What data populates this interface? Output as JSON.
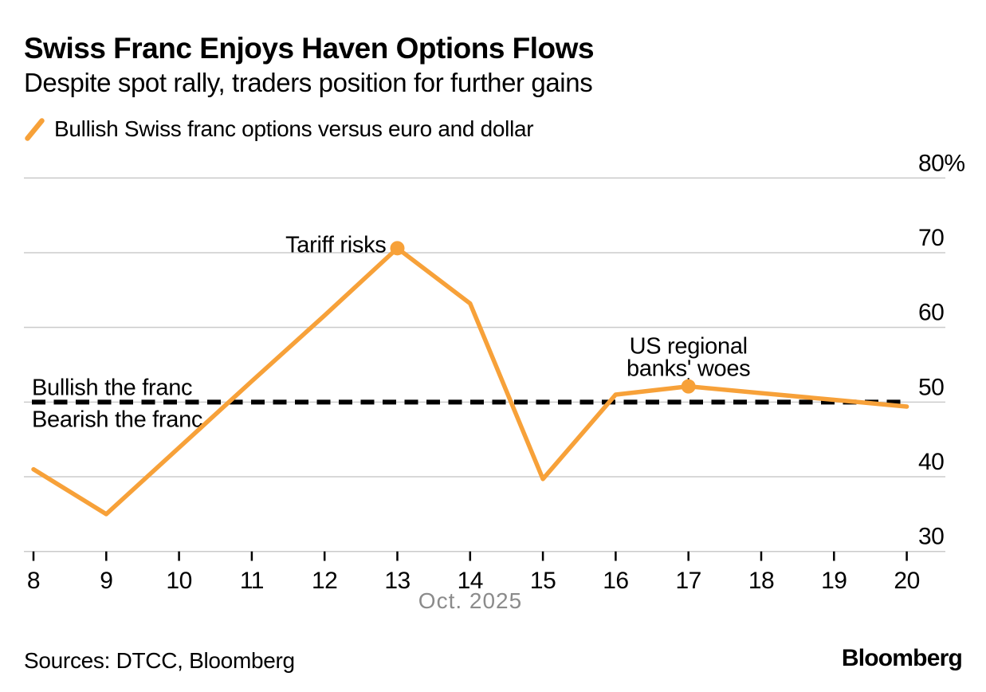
{
  "header": {
    "title": "Swiss Franc Enjoys Haven Options Flows",
    "subtitle": "Despite spot rally, traders position for further gains"
  },
  "legend": {
    "label": "Bullish Swiss franc options versus euro and dollar",
    "swatch_color": "#F7A139"
  },
  "chart_data": {
    "type": "line",
    "title": "Swiss Franc Enjoys Haven Options Flows",
    "subtitle": "Despite spot rally, traders position for further gains",
    "grid": "horizontal",
    "series": [
      {
        "name": "Bullish Swiss franc options versus euro and dollar",
        "color": "#F7A139",
        "x": [
          8,
          9,
          10,
          11,
          12,
          13,
          14,
          15,
          16,
          17,
          18,
          19,
          20
        ],
        "values": [
          41.0,
          35.0,
          43.9,
          52.8,
          61.6,
          70.6,
          63.2,
          39.7,
          51.0,
          52.1,
          51.2,
          50.3,
          49.4
        ],
        "marker_days": [
          13,
          17
        ]
      }
    ],
    "x_axis": {
      "month_label": "Oct. 2025",
      "days": [
        8,
        9,
        10,
        11,
        12,
        13,
        14,
        15,
        16,
        17,
        18,
        19,
        20
      ],
      "ticks": [
        "8",
        "9",
        "10",
        "11",
        "12",
        "13",
        "14",
        "15",
        "16",
        "17",
        "18",
        "19",
        "20"
      ]
    },
    "y_axis": {
      "unit": "%",
      "range": [
        30,
        80
      ],
      "values": [
        80,
        70,
        60,
        50,
        40,
        30
      ],
      "ticks": [
        "80%",
        "70",
        "60",
        "50",
        "40",
        "30"
      ]
    },
    "threshold": {
      "value": 50,
      "style": "dashed",
      "color": "#000000",
      "label_above": "Bullish the franc",
      "label_below": "Bearish the franc"
    },
    "annotations": [
      {
        "lines": [
          "Tariff risks"
        ],
        "day": 13,
        "value": 70.6,
        "align": "left"
      },
      {
        "lines": [
          "US regional",
          "banks' woes"
        ],
        "day": 17,
        "value": 52.1,
        "align": "above"
      }
    ]
  },
  "footer": {
    "sources": "Sources: DTCC, Bloomberg",
    "brand": "Bloomberg"
  }
}
